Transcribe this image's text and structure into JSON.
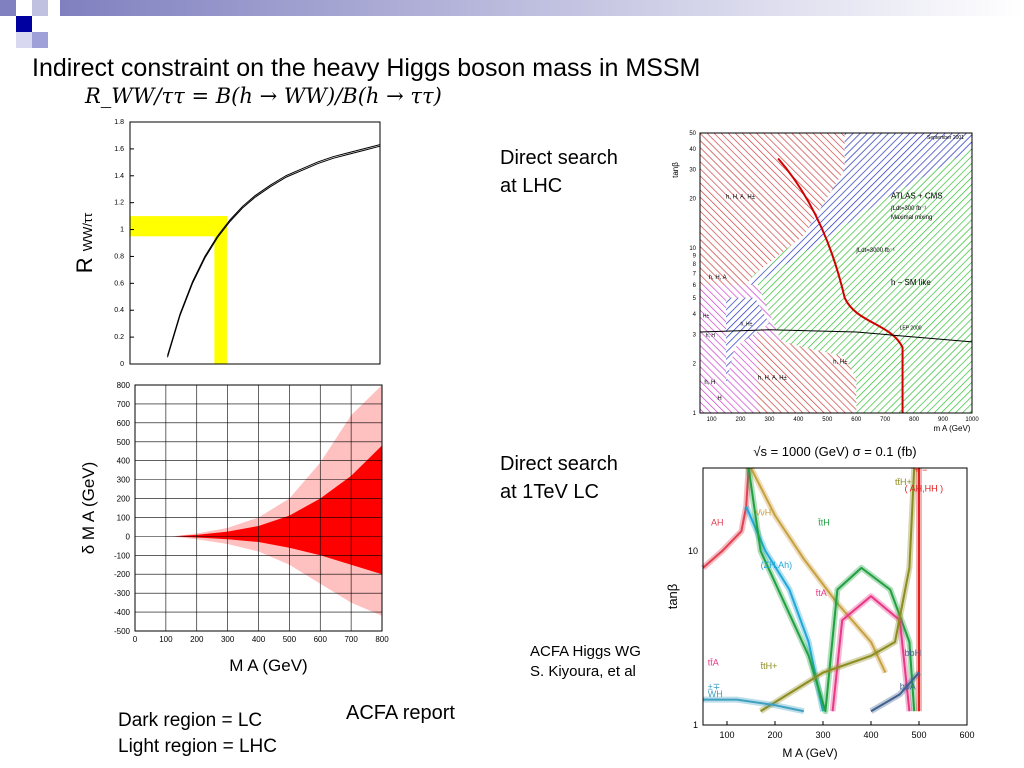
{
  "slide": {
    "title": "Indirect constraint on the heavy Higgs boson mass in MSSM",
    "formula": "R_WW/ττ = B(h → WW)/B(h → ττ)",
    "lhc_label": [
      "Direct search",
      "at LHC"
    ],
    "lc_label": [
      "Direct search",
      "at 1TeV LC"
    ],
    "acfa_report": "ACFA report",
    "credit": [
      "ACFA Higgs WG",
      "S. Kiyoura, et al"
    ],
    "legend": [
      "Dark region = LC",
      "Light region = LHC"
    ]
  },
  "chart_data": [
    {
      "type": "line",
      "id": "R-ratio",
      "ylabel": "R WW/ττ",
      "yticks": [
        "0",
        "0.2",
        "0.4",
        "0.6",
        "0.8",
        "1",
        "1.2",
        "1.4",
        "1.6",
        "1.8"
      ],
      "ylim": [
        0,
        1.8
      ],
      "xlim": [
        0,
        800
      ],
      "series": [
        {
          "x": [
            120,
            160,
            200,
            240,
            280,
            320,
            360,
            400,
            450,
            500,
            550,
            600,
            650,
            700,
            750,
            800
          ],
          "y": [
            0.05,
            0.36,
            0.6,
            0.79,
            0.94,
            1.06,
            1.16,
            1.24,
            1.32,
            1.39,
            1.44,
            1.49,
            1.53,
            1.56,
            1.59,
            1.62
          ]
        }
      ],
      "highlight": {
        "y_band": [
          0.95,
          1.1
        ],
        "x_band": [
          270,
          310
        ],
        "color": "#ffff00"
      }
    },
    {
      "type": "area",
      "id": "delta-MA",
      "xlabel": "M A  (GeV)",
      "ylabel": "δ M A  (GeV)",
      "xticks": [
        "0",
        "100",
        "200",
        "300",
        "400",
        "500",
        "600",
        "700",
        "800"
      ],
      "yticks": [
        "-500",
        "-400",
        "-300",
        "-200",
        "-100",
        "0",
        "100",
        "200",
        "300",
        "400",
        "500",
        "600",
        "700",
        "800"
      ],
      "xlim": [
        0,
        800
      ],
      "ylim": [
        -500,
        800
      ],
      "grid": true,
      "series": [
        {
          "name": "Light region",
          "color": "#ffc0c0",
          "x": [
            120,
            200,
            300,
            400,
            500,
            600,
            700,
            800
          ],
          "upper": [
            0,
            15,
            45,
            100,
            200,
            390,
            640,
            800
          ],
          "lower": [
            0,
            -15,
            -40,
            -80,
            -150,
            -250,
            -350,
            -420
          ]
        },
        {
          "name": "Dark region",
          "color": "#ff0000",
          "x": [
            120,
            200,
            300,
            400,
            500,
            600,
            700,
            800
          ],
          "upper": [
            0,
            8,
            25,
            55,
            110,
            200,
            320,
            480
          ],
          "lower": [
            0,
            -6,
            -15,
            -30,
            -60,
            -100,
            -150,
            -200
          ]
        }
      ]
    },
    {
      "type": "area",
      "id": "lhc-tanbeta",
      "xlabel": "m A (GeV)",
      "ylabel": "tanβ",
      "note": "September 2001",
      "xticks": [
        "100",
        "200",
        "300",
        "400",
        "500",
        "600",
        "700",
        "800",
        "900",
        "1000"
      ],
      "yticks": [
        "1",
        "2",
        "3",
        "4",
        "5",
        "6",
        "7",
        "8",
        "9",
        "10",
        "20",
        "30",
        "40",
        "50"
      ],
      "xlim": [
        60,
        1000
      ],
      "ylim": [
        1,
        50
      ],
      "yscale": "log",
      "annotations": [
        "h, H, A, H±",
        "ATLAS + CMS",
        "∫Ldt=300 fb⁻¹",
        "Maximal mixing",
        "∫Ldt=3000 fb⁻¹",
        "h − SM like",
        "LEP 2000",
        "h, H, A",
        "H±",
        "h, H",
        "h, H±",
        "h, H, A, H±",
        "h, H±",
        "h, H",
        "H"
      ]
    },
    {
      "type": "line",
      "id": "lc-tanbeta",
      "title": "√s = 1000 (GeV)  σ = 0.1 (fb)",
      "xlabel": "M A  (GeV)",
      "ylabel": "tanβ",
      "xticks": [
        "100",
        "200",
        "300",
        "400",
        "500",
        "600"
      ],
      "yticks": [
        "1",
        "10"
      ],
      "xlim": [
        50,
        600
      ],
      "ylim": [
        1,
        30
      ],
      "yscale": "log",
      "series": [
        {
          "name": "AH",
          "color": "#e04050"
        },
        {
          "name": "ννH",
          "color": "#c8a040"
        },
        {
          "name": "(ZH,Ah)",
          "color": "#20a8d8"
        },
        {
          "name": "ttH",
          "color": "#20a040"
        },
        {
          "name": "ttA",
          "color": "#e83888"
        },
        {
          "name": "tt̄H+",
          "color": "#8c8c20"
        },
        {
          "name": "( AH,HH )",
          "color": "#e02020"
        },
        {
          "name": "bbH",
          "color": "#406090"
        },
        {
          "name": "bbA",
          "color": "#406090"
        },
        {
          "name": "WH",
          "color": "#40a0c0"
        }
      ],
      "annotations": [
        "AH",
        "ν̄νH",
        "(ZH,Ah)",
        "t̄tH",
        "t̄tA",
        "tt̄H+",
        "+ −",
        "( AH,HH )",
        "bbH",
        "bbA",
        "tt̄A",
        "t̄tH+",
        "±∓",
        "WH"
      ]
    }
  ]
}
